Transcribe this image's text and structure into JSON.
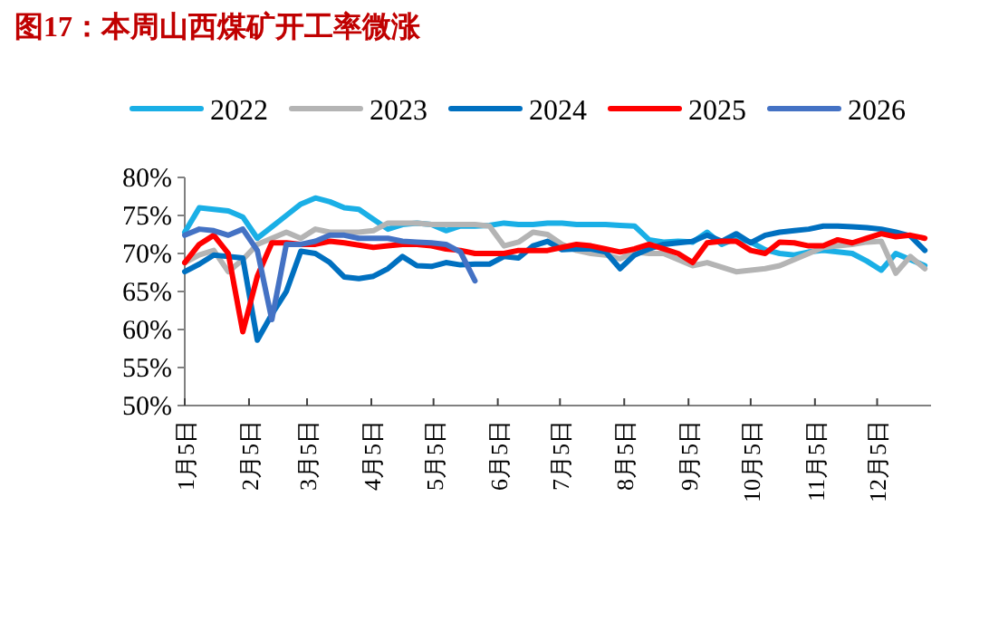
{
  "chart_data": {
    "type": "line",
    "title": "图17：本周山西煤矿开工率微涨",
    "legend": "top",
    "grid": false,
    "line_style": "solid",
    "marker": "none",
    "x": [
      "--01-05",
      "--01-12",
      "--01-19",
      "--01-26",
      "--02-02",
      "--02-09",
      "--02-16",
      "--02-23",
      "--03-02",
      "--03-09",
      "--03-16",
      "--03-23",
      "--03-30",
      "--04-06",
      "--04-13",
      "--04-20",
      "--04-27",
      "--05-04",
      "--05-11",
      "--05-18",
      "--05-25",
      "--06-01",
      "--06-08",
      "--06-15",
      "--06-22",
      "--06-29",
      "--07-06",
      "--07-13",
      "--07-20",
      "--07-27",
      "--08-03",
      "--08-10",
      "--08-17",
      "--08-24",
      "--08-31",
      "--09-07",
      "--09-14",
      "--09-21",
      "--09-28",
      "--10-05",
      "--10-12",
      "--10-19",
      "--10-26",
      "--11-02",
      "--11-09",
      "--11-16",
      "--11-23",
      "--11-30",
      "--12-07",
      "--12-14",
      "--12-21",
      "--12-28"
    ],
    "xlim": [
      "--01-05",
      "--12-31"
    ],
    "xticks": [
      {
        "value": "--01-05",
        "label": "1月5日"
      },
      {
        "value": "--02-05",
        "label": "2月5日"
      },
      {
        "value": "--03-05",
        "label": "3月5日"
      },
      {
        "value": "--04-05",
        "label": "4月5日"
      },
      {
        "value": "--05-05",
        "label": "5月5日"
      },
      {
        "value": "--06-05",
        "label": "6月5日"
      },
      {
        "value": "--07-05",
        "label": "7月5日"
      },
      {
        "value": "--08-05",
        "label": "8月5日"
      },
      {
        "value": "--09-05",
        "label": "9月5日"
      },
      {
        "value": "--10-05",
        "label": "10月5日"
      },
      {
        "value": "--11-05",
        "label": "11月5日"
      },
      {
        "value": "--12-05",
        "label": "12月5日"
      }
    ],
    "ylim": [
      50,
      80
    ],
    "yticks": [
      {
        "value": 50,
        "label": "50%"
      },
      {
        "value": 55,
        "label": "55%"
      },
      {
        "value": 60,
        "label": "60%"
      },
      {
        "value": 65,
        "label": "65%"
      },
      {
        "value": 70,
        "label": "70%"
      },
      {
        "value": 75,
        "label": "75%"
      },
      {
        "value": 80,
        "label": "80%"
      }
    ],
    "series": [
      {
        "name": "2022",
        "color": "#1aafe6",
        "values": [
          72.8,
          76,
          75.8,
          75.6,
          74.8,
          72,
          73.5,
          75,
          76.5,
          77.3,
          76.8,
          76,
          75.8,
          74.5,
          73.2,
          73.8,
          74,
          73.8,
          73,
          73.6,
          73.6,
          73.7,
          74,
          73.8,
          73.8,
          74,
          74,
          73.8,
          73.8,
          73.8,
          73.7,
          73.6,
          71.8,
          71.5,
          71.6,
          71.5,
          72.8,
          71.2,
          72,
          71.5,
          70.5,
          70,
          69.8,
          70.2,
          70.4,
          70.2,
          70,
          69,
          67.8,
          70,
          69.2,
          68.4
        ]
      },
      {
        "name": "2023",
        "color": "#b4b4b4",
        "values": [
          68.8,
          69.8,
          70.4,
          67.6,
          69.2,
          71.2,
          72,
          72.8,
          72,
          73.2,
          72.8,
          72.8,
          72.8,
          73,
          74,
          74,
          74,
          73.8,
          73.8,
          73.8,
          73.8,
          73.6,
          71,
          71.5,
          72.8,
          72.5,
          71.2,
          70.4,
          70,
          69.8,
          69.3,
          70.2,
          70,
          70,
          69.2,
          68.4,
          68.8,
          68.2,
          67.6,
          67.8,
          68,
          68.4,
          69.2,
          70,
          70.8,
          71,
          71.2,
          71.5,
          71.6,
          67.4,
          69.6,
          68
        ]
      },
      {
        "name": "2024",
        "color": "#0070c0",
        "values": [
          67.6,
          68.6,
          69.8,
          69.6,
          69.4,
          58.6,
          62,
          65,
          70.3,
          70,
          68.8,
          66.9,
          66.7,
          67,
          68,
          69.6,
          68.4,
          68.3,
          68.8,
          68.5,
          68.6,
          68.6,
          69.6,
          69.4,
          71,
          71.6,
          70.5,
          70.6,
          70.6,
          70.2,
          68,
          69.8,
          70.6,
          71.2,
          71.4,
          71.6,
          72.4,
          71.6,
          72.6,
          71.4,
          72.4,
          72.8,
          73,
          73.2,
          73.6,
          73.6,
          73.5,
          73.4,
          73.2,
          72.8,
          72.3,
          70.4
        ]
      },
      {
        "name": "2025",
        "color": "#ff0000",
        "values": [
          68.8,
          71.2,
          72.4,
          70,
          59.7,
          67,
          71.4,
          71.4,
          71.2,
          71.2,
          71.6,
          71.4,
          71.1,
          70.8,
          71,
          71.2,
          71.2,
          71,
          70.6,
          70.4,
          70,
          70,
          70,
          70.4,
          70.4,
          70.4,
          70.8,
          71.2,
          71,
          70.6,
          70.2,
          70.6,
          71.2,
          70.6,
          70,
          68.8,
          71.4,
          71.6,
          71.6,
          70.4,
          70,
          71.5,
          71.4,
          71,
          71,
          71.8,
          71.4,
          72,
          72.6,
          72.2,
          72.4,
          72
        ]
      },
      {
        "name": "2026",
        "color": "#4472c4",
        "x": [
          "--01-05",
          "--01-12",
          "--01-19",
          "--01-26",
          "--02-02",
          "--02-09",
          "--02-16",
          "--02-23",
          "--03-02",
          "--03-09",
          "--03-16",
          "--03-23",
          "--03-30",
          "--04-06",
          "--04-13",
          "--04-20",
          "--04-27",
          "--05-04",
          "--05-11",
          "--05-18",
          "--05-25"
        ],
        "values": [
          72.4,
          73.2,
          73,
          72.4,
          73.2,
          70.4,
          61.3,
          71.2,
          71.2,
          71.6,
          72.4,
          72.4,
          72,
          72,
          72,
          71.6,
          71.5,
          71.4,
          71.2,
          70.2,
          66.4
        ]
      }
    ]
  }
}
